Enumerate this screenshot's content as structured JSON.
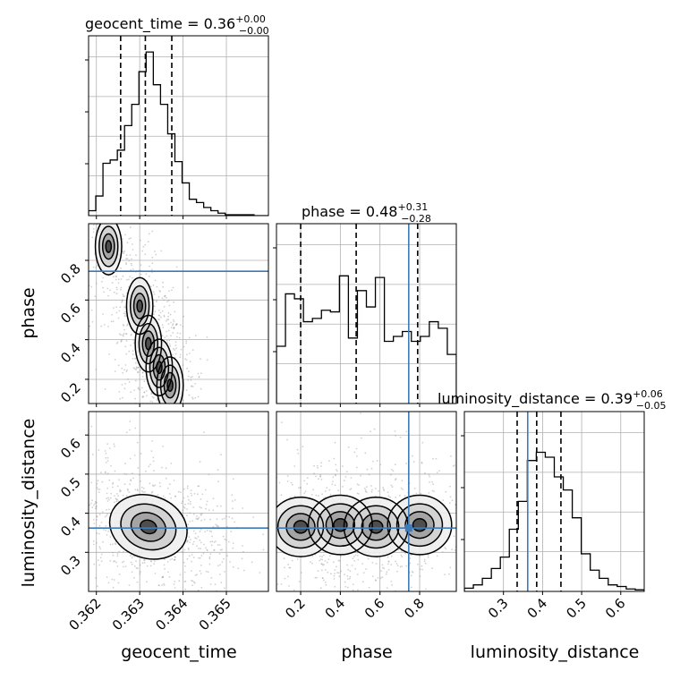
{
  "chart_data": {
    "type": "corner",
    "colors": {
      "truth": "#3d7ab8",
      "step": "#000000",
      "points": "#9a9a9a"
    },
    "parameters": [
      {
        "key": "geocent_time",
        "label": "geocent_time",
        "median": "0.36",
        "err_plus": "+0.00",
        "err_minus": "−0.00",
        "title_prefix": "geocent_time = ",
        "range": [
          0.36182,
          0.36597
        ],
        "ticks": [
          0.362,
          0.363,
          0.364,
          0.365
        ],
        "tick_labels": [
          "0.362",
          "0.363",
          "0.364",
          "0.365"
        ],
        "quantiles": [
          0.36256,
          0.36313,
          0.36374
        ],
        "truth": null
      },
      {
        "key": "phase",
        "label": "phase",
        "median": "0.48",
        "err_plus": "+0.31",
        "err_minus": "−0.28",
        "title_prefix": "phase = ",
        "range": [
          0.078,
          0.985
        ],
        "ticks": [
          0.2,
          0.4,
          0.6,
          0.8
        ],
        "tick_labels": [
          "0.2",
          "0.4",
          "0.6",
          "0.8"
        ],
        "quantiles": [
          0.2,
          0.48,
          0.79
        ],
        "truth": 0.745
      },
      {
        "key": "luminosity_distance",
        "label": "luminosity_distance",
        "median": "0.39",
        "err_plus": "+0.06",
        "err_minus": "−0.05",
        "title_prefix": "luminosity_distance = ",
        "range": [
          0.2,
          0.66
        ],
        "ticks": [
          0.3,
          0.4,
          0.5,
          0.6
        ],
        "tick_labels": [
          "0.3",
          "0.4",
          "0.5",
          "0.6"
        ],
        "quantiles": [
          0.335,
          0.385,
          0.447
        ],
        "truth": 0.362
      }
    ],
    "histograms": {
      "geocent_time": [
        0.03,
        0.12,
        0.32,
        0.34,
        0.4,
        0.55,
        0.68,
        0.88,
        1.0,
        0.8,
        0.68,
        0.5,
        0.33,
        0.2,
        0.1,
        0.08,
        0.05,
        0.03,
        0.015,
        0.005,
        0.005,
        0.005,
        0.005,
        0.0,
        0.0
      ],
      "phase": [
        0.35,
        0.67,
        0.64,
        0.5,
        0.52,
        0.57,
        0.56,
        0.78,
        0.4,
        0.69,
        0.59,
        0.77,
        0.38,
        0.41,
        0.44,
        0.38,
        0.41,
        0.5,
        0.46,
        0.3
      ],
      "luminosity_distance": [
        0.02,
        0.04,
        0.08,
        0.14,
        0.21,
        0.38,
        0.55,
        0.8,
        0.85,
        0.82,
        0.7,
        0.62,
        0.45,
        0.23,
        0.13,
        0.08,
        0.04,
        0.03,
        0.015,
        0.01
      ]
    },
    "panels": [
      {
        "row": 1,
        "col": 0,
        "x": "geocent_time",
        "y": "phase"
      },
      {
        "row": 2,
        "col": 0,
        "x": "geocent_time",
        "y": "luminosity_distance"
      },
      {
        "row": 2,
        "col": 1,
        "x": "phase",
        "y": "luminosity_distance"
      }
    ],
    "density_centers": {
      "geocent_time_phase": [
        [
          0.36228,
          0.87
        ],
        [
          0.363,
          0.57
        ],
        [
          0.3632,
          0.38
        ],
        [
          0.36345,
          0.26
        ],
        [
          0.3637,
          0.17
        ]
      ],
      "geocent_time_luminosity_distance": [
        [
          0.3632,
          0.365
        ]
      ],
      "phase_luminosity_distance": [
        [
          0.2,
          0.365
        ],
        [
          0.4,
          0.37
        ],
        [
          0.58,
          0.365
        ],
        [
          0.8,
          0.37
        ]
      ]
    },
    "grid": true
  }
}
